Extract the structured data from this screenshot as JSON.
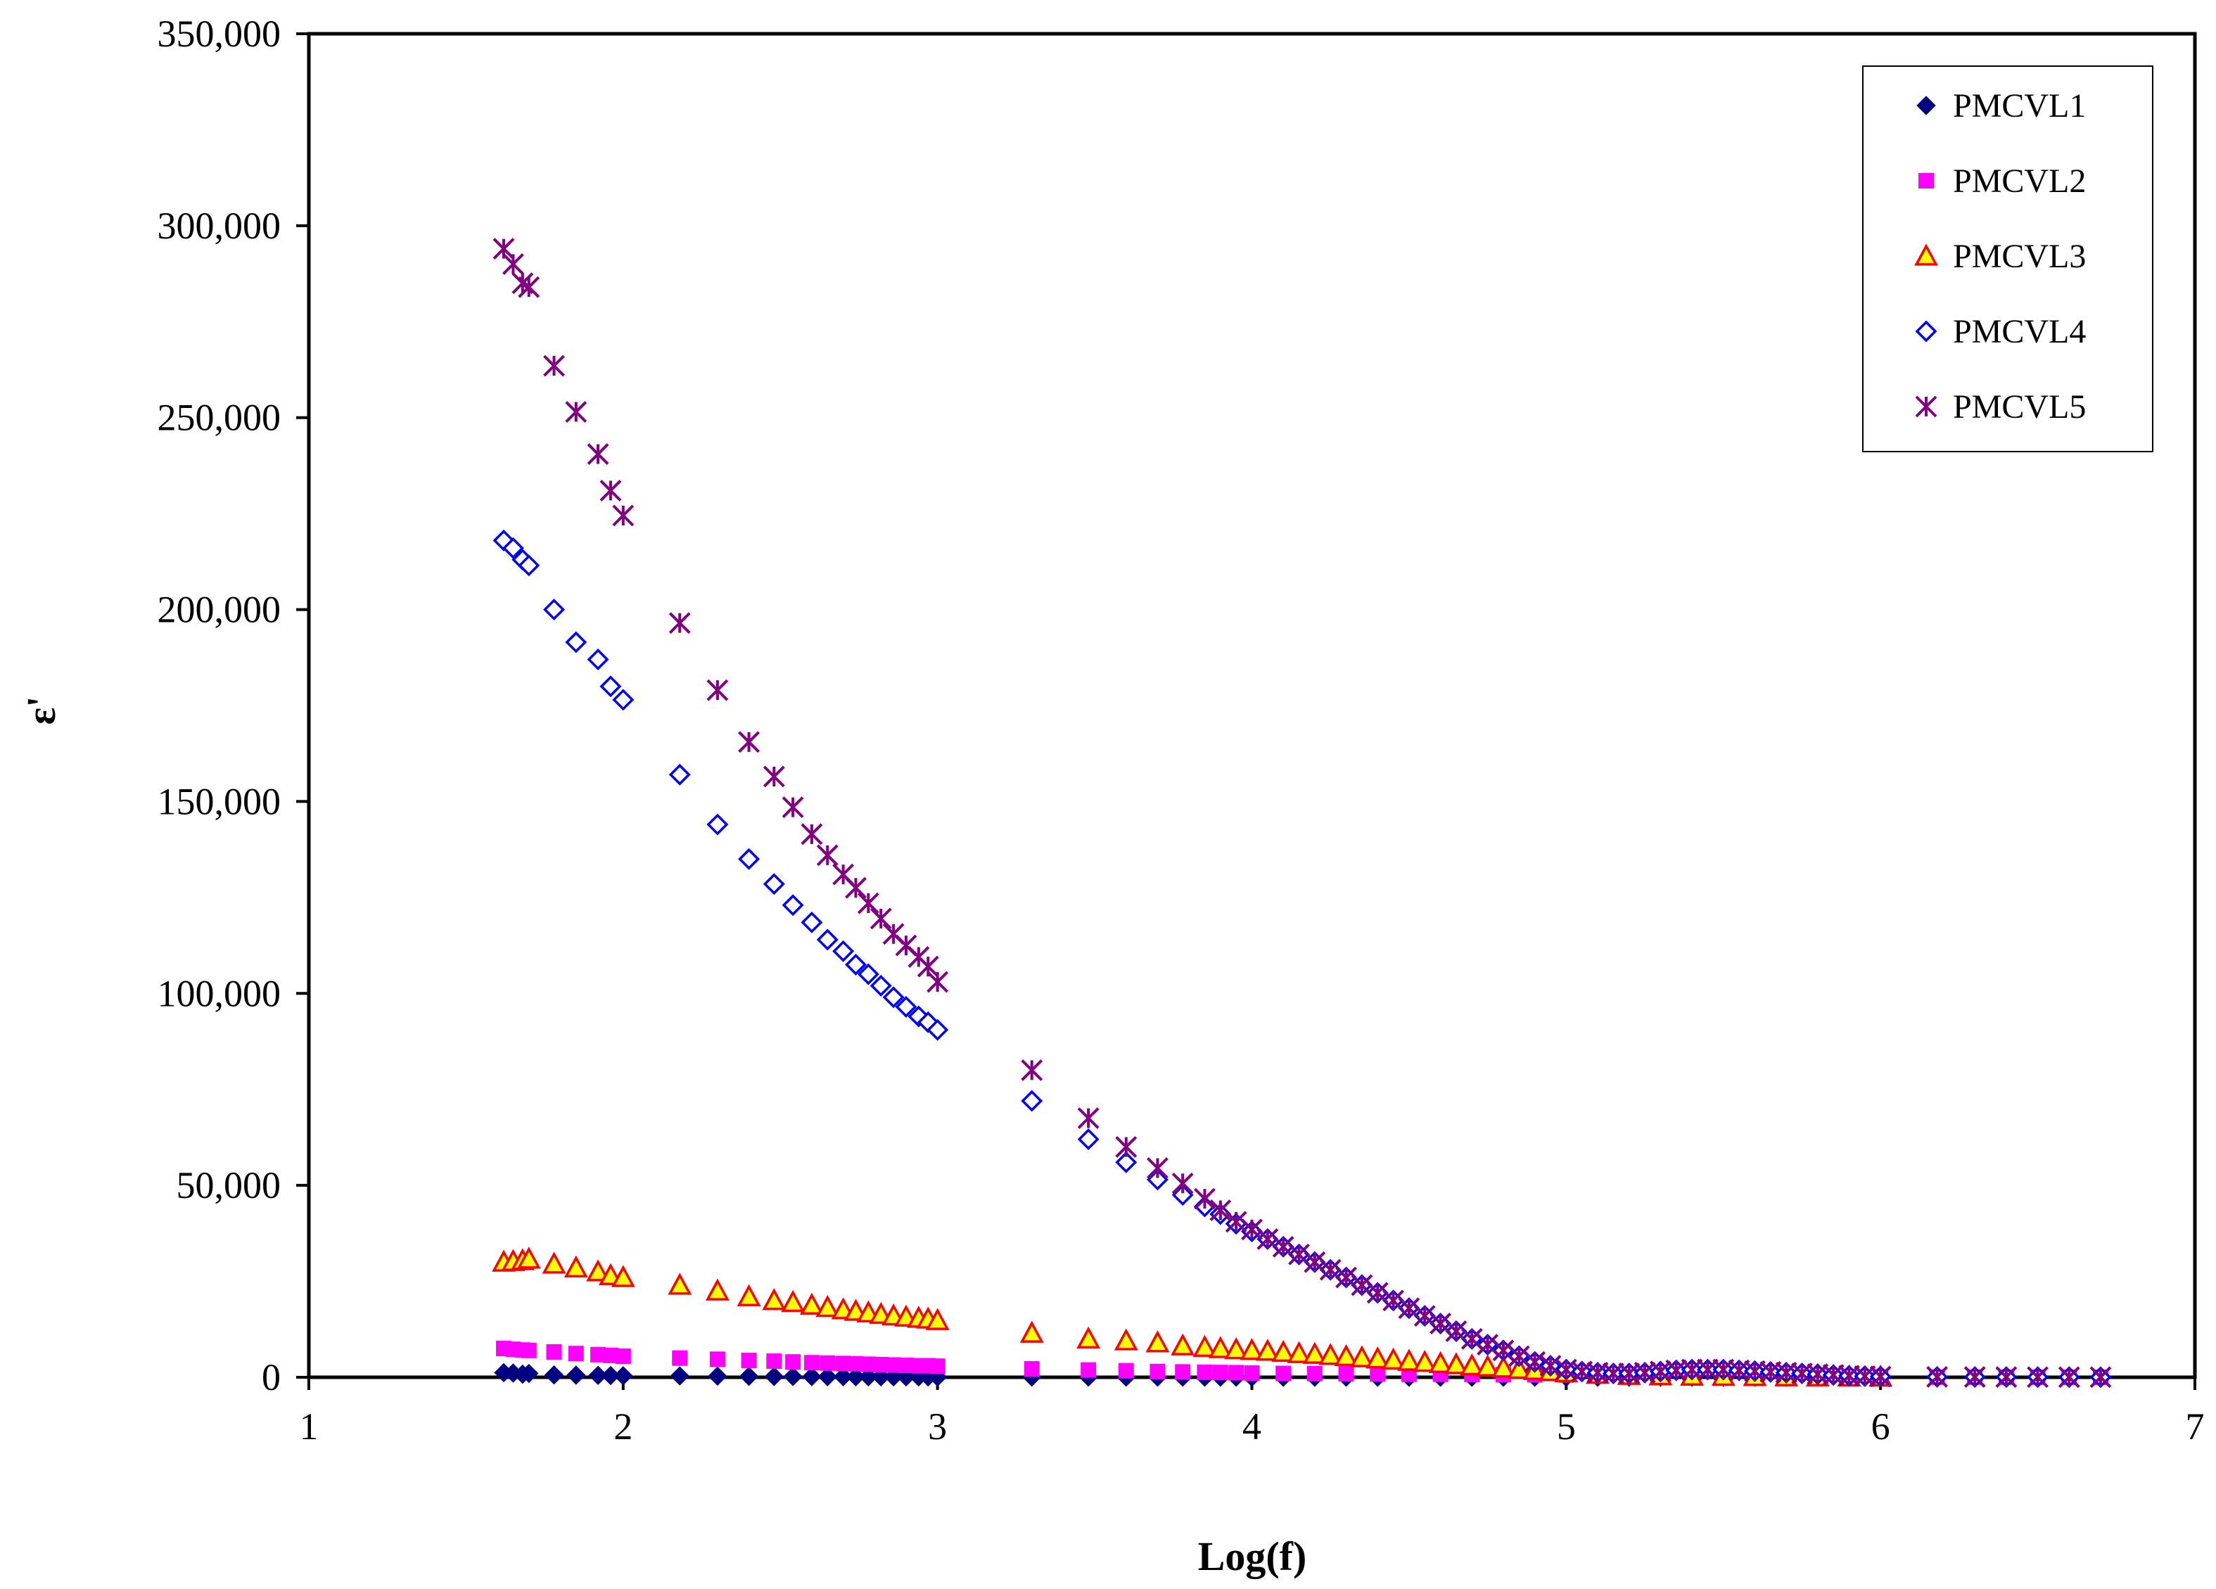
{
  "chart_data": {
    "type": "scatter",
    "title": "",
    "xlabel": "Log(f)",
    "ylabel": "ε'",
    "xlim": [
      1,
      7
    ],
    "ylim": [
      0,
      350000
    ],
    "x_ticks": [
      1,
      2,
      3,
      4,
      5,
      6,
      7
    ],
    "y_ticks": [
      0,
      50000,
      100000,
      150000,
      200000,
      250000,
      300000,
      350000
    ],
    "x_tick_labels": [
      "1",
      "2",
      "3",
      "4",
      "5",
      "6",
      "7"
    ],
    "y_tick_labels": [
      "0",
      "50,000",
      "100,000",
      "150,000",
      "200,000",
      "250,000",
      "300,000",
      "350,000"
    ],
    "grid": false,
    "legend_position": "top-right",
    "series": [
      {
        "name": "PMCVL1",
        "marker": "diamond-filled",
        "color": "#000080",
        "x": [
          1.62,
          1.65,
          1.68,
          1.7,
          1.78,
          1.85,
          1.92,
          1.96,
          2.0,
          2.18,
          2.3,
          2.4,
          2.48,
          2.54,
          2.6,
          2.65,
          2.7,
          2.74,
          2.78,
          2.82,
          2.86,
          2.9,
          2.94,
          2.97,
          3.0,
          3.3,
          3.48,
          3.6,
          3.7,
          3.78,
          3.85,
          3.9,
          3.95,
          4.0,
          4.1,
          4.2,
          4.3,
          4.4,
          4.5,
          4.6,
          4.7,
          4.8,
          4.9,
          5.0,
          5.1,
          5.2,
          5.3,
          5.4,
          5.5,
          5.6,
          5.7,
          5.8,
          5.9,
          6.0,
          6.18,
          6.3,
          6.4,
          6.5,
          6.6,
          6.7
        ],
        "y": [
          1200,
          1100,
          800,
          1000,
          600,
          550,
          500,
          450,
          400,
          350,
          300,
          250,
          200,
          200,
          180,
          160,
          150,
          140,
          130,
          120,
          110,
          100,
          100,
          90,
          80,
          60,
          50,
          40,
          40,
          30,
          30,
          30,
          30,
          25,
          25,
          20,
          20,
          20,
          20,
          20,
          15,
          15,
          15,
          15,
          15,
          15,
          15,
          10,
          10,
          10,
          10,
          10,
          10,
          10,
          10,
          10,
          10,
          10,
          10,
          10
        ]
      },
      {
        "name": "PMCVL2",
        "marker": "square-filled",
        "color": "#FF00FF",
        "x": [
          1.62,
          1.65,
          1.68,
          1.7,
          1.78,
          1.85,
          1.92,
          1.96,
          2.0,
          2.18,
          2.3,
          2.4,
          2.48,
          2.54,
          2.6,
          2.65,
          2.7,
          2.74,
          2.78,
          2.82,
          2.86,
          2.9,
          2.94,
          2.97,
          3.0,
          3.3,
          3.48,
          3.6,
          3.7,
          3.78,
          3.85,
          3.9,
          3.95,
          4.0,
          4.1,
          4.2,
          4.3,
          4.4,
          4.5,
          4.6,
          4.7,
          4.8,
          4.9,
          5.0,
          5.1,
          5.2,
          5.3,
          5.4,
          5.5,
          5.6,
          5.7,
          5.8,
          5.9,
          6.0,
          6.18,
          6.3,
          6.4,
          6.5,
          6.6,
          6.7
        ],
        "y": [
          7500,
          7300,
          7100,
          7000,
          6600,
          6200,
          5900,
          5700,
          5500,
          5000,
          4700,
          4400,
          4200,
          4000,
          3800,
          3700,
          3600,
          3500,
          3400,
          3300,
          3200,
          3100,
          3000,
          3000,
          2900,
          2200,
          1900,
          1700,
          1500,
          1400,
          1300,
          1250,
          1200,
          1100,
          1000,
          950,
          900,
          850,
          800,
          800,
          750,
          700,
          650,
          600,
          500,
          400,
          300,
          250,
          200,
          150,
          120,
          100,
          80,
          60,
          40,
          30,
          20,
          20,
          15,
          10
        ]
      },
      {
        "name": "PMCVL3",
        "marker": "triangle-open",
        "color": "#FF0000",
        "fill": "#FFFF00",
        "x": [
          1.62,
          1.65,
          1.68,
          1.7,
          1.78,
          1.85,
          1.92,
          1.96,
          2.0,
          2.18,
          2.3,
          2.4,
          2.48,
          2.54,
          2.6,
          2.65,
          2.7,
          2.74,
          2.78,
          2.82,
          2.86,
          2.9,
          2.94,
          2.97,
          3.0,
          3.3,
          3.48,
          3.6,
          3.7,
          3.78,
          3.85,
          3.9,
          3.95,
          4.0,
          4.05,
          4.1,
          4.15,
          4.2,
          4.25,
          4.3,
          4.35,
          4.4,
          4.45,
          4.5,
          4.55,
          4.6,
          4.65,
          4.7,
          4.75,
          4.8,
          4.85,
          4.9,
          4.95,
          5.0,
          5.1,
          5.2,
          5.3,
          5.4,
          5.5,
          5.6,
          5.7,
          5.8,
          5.9,
          6.0
        ],
        "y": [
          30000,
          30200,
          30400,
          30800,
          29500,
          28500,
          27500,
          26500,
          26000,
          24000,
          22500,
          21000,
          20000,
          19500,
          18800,
          18200,
          17600,
          17200,
          16800,
          16400,
          16000,
          15700,
          15400,
          15200,
          14800,
          11500,
          10000,
          9500,
          9000,
          8200,
          7800,
          7500,
          7200,
          7000,
          6800,
          6500,
          6200,
          6000,
          5700,
          5400,
          5100,
          4800,
          4500,
          4200,
          3900,
          3600,
          3300,
          3000,
          2700,
          2400,
          2100,
          1800,
          1500,
          1200,
          800,
          500,
          400,
          300,
          250,
          200,
          150,
          120,
          100,
          80
        ]
      },
      {
        "name": "PMCVL4",
        "marker": "diamond-open",
        "color": "#0000FF",
        "x": [
          1.62,
          1.65,
          1.68,
          1.7,
          1.78,
          1.85,
          1.92,
          1.96,
          2.0,
          2.18,
          2.3,
          2.4,
          2.48,
          2.54,
          2.6,
          2.65,
          2.7,
          2.74,
          2.78,
          2.82,
          2.86,
          2.9,
          2.94,
          2.97,
          3.0,
          3.3,
          3.48,
          3.6,
          3.7,
          3.78,
          3.85,
          3.9,
          3.95,
          4.0,
          4.05,
          4.1,
          4.15,
          4.2,
          4.25,
          4.3,
          4.35,
          4.4,
          4.45,
          4.5,
          4.55,
          4.6,
          4.65,
          4.7,
          4.75,
          4.8,
          4.85,
          4.9,
          4.95,
          5.0,
          5.05,
          5.1,
          5.15,
          5.2,
          5.25,
          5.3,
          5.35,
          5.4,
          5.45,
          5.5,
          5.55,
          5.6,
          5.65,
          5.7,
          5.75,
          5.8,
          5.85,
          5.9,
          5.95,
          6.0,
          6.18,
          6.3,
          6.4,
          6.5,
          6.6,
          6.7
        ],
        "y": [
          218000,
          216000,
          213000,
          211500,
          200000,
          191500,
          187000,
          180000,
          176500,
          157000,
          144000,
          135000,
          128500,
          123000,
          118500,
          114000,
          111000,
          107500,
          105000,
          102000,
          99000,
          96500,
          94000,
          92500,
          90500,
          72000,
          62000,
          56000,
          51500,
          47500,
          44500,
          42500,
          40000,
          38000,
          36000,
          34000,
          32000,
          30000,
          28000,
          26000,
          24000,
          22000,
          20000,
          18000,
          16000,
          14000,
          12000,
          10000,
          8500,
          7000,
          5500,
          4000,
          3000,
          2000,
          1500,
          1200,
          1000,
          1000,
          1200,
          1500,
          1800,
          2000,
          2000,
          2000,
          1800,
          1600,
          1400,
          1200,
          1000,
          800,
          600,
          400,
          300,
          200,
          100,
          80,
          60,
          50,
          40,
          30
        ]
      },
      {
        "name": "PMCVL5",
        "marker": "star",
        "color": "#800080",
        "x": [
          1.62,
          1.65,
          1.68,
          1.7,
          1.78,
          1.85,
          1.92,
          1.96,
          2.0,
          2.18,
          2.3,
          2.4,
          2.48,
          2.54,
          2.6,
          2.65,
          2.7,
          2.74,
          2.78,
          2.82,
          2.86,
          2.9,
          2.94,
          2.97,
          3.0,
          3.3,
          3.48,
          3.6,
          3.7,
          3.78,
          3.85,
          3.9,
          3.95,
          4.0,
          4.05,
          4.1,
          4.15,
          4.2,
          4.25,
          4.3,
          4.35,
          4.4,
          4.45,
          4.5,
          4.55,
          4.6,
          4.65,
          4.7,
          4.75,
          4.8,
          4.85,
          4.9,
          4.95,
          5.0,
          5.05,
          5.1,
          5.15,
          5.2,
          5.25,
          5.3,
          5.35,
          5.4,
          5.45,
          5.5,
          5.55,
          5.6,
          5.65,
          5.7,
          5.75,
          5.8,
          5.85,
          5.9,
          5.95,
          6.0,
          6.18,
          6.3,
          6.4,
          6.5,
          6.6,
          6.7
        ],
        "y": [
          294000,
          290000,
          285000,
          284000,
          263500,
          251500,
          240500,
          231000,
          224500,
          196500,
          179000,
          165500,
          156500,
          148500,
          141500,
          136000,
          131000,
          127500,
          123500,
          119500,
          115500,
          112500,
          109500,
          107000,
          103000,
          80000,
          67500,
          60000,
          54500,
          50500,
          46500,
          43500,
          40500,
          38500,
          36000,
          34000,
          32000,
          30000,
          28000,
          26000,
          24000,
          22000,
          20000,
          18000,
          16000,
          14000,
          12000,
          10000,
          8500,
          7000,
          5500,
          4000,
          3000,
          2000,
          1500,
          1200,
          1000,
          1000,
          1200,
          1500,
          1800,
          2000,
          2000,
          2000,
          1800,
          1600,
          1400,
          1200,
          1000,
          800,
          600,
          400,
          300,
          200,
          100,
          80,
          60,
          50,
          40,
          30
        ]
      }
    ]
  }
}
